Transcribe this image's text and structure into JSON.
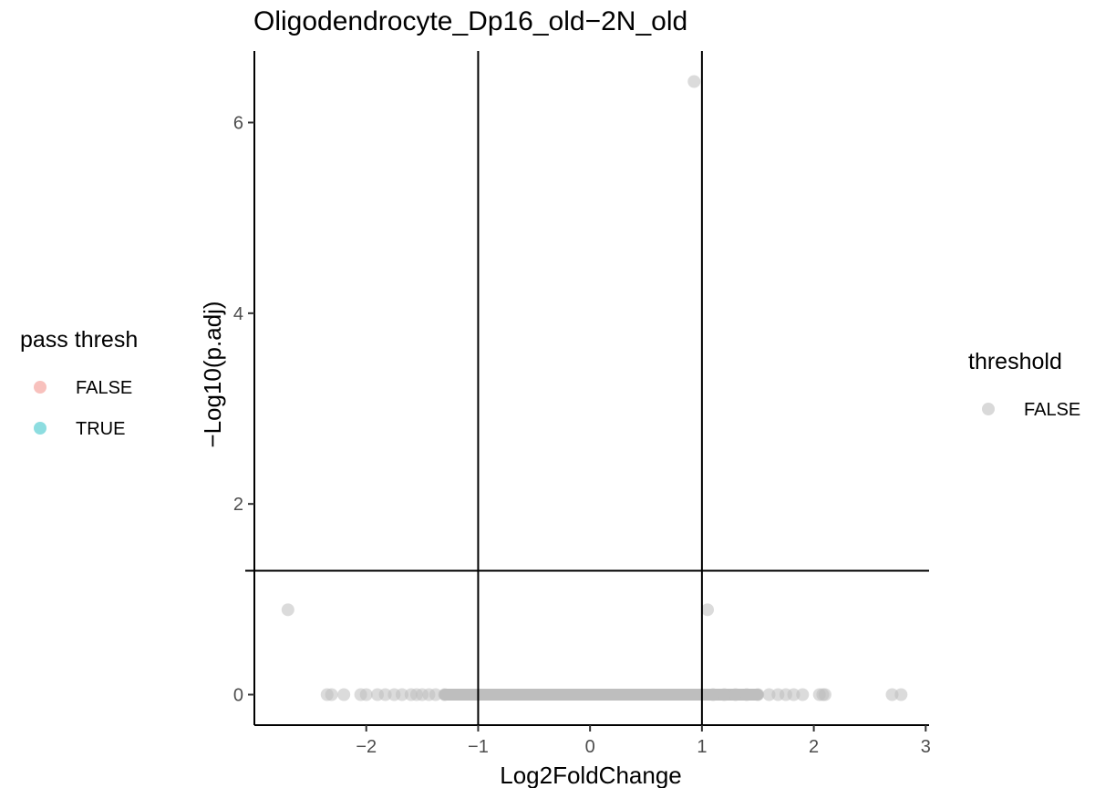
{
  "chart_data": {
    "type": "scatter",
    "title": "Oligodendrocyte_Dp16_old−2N_old",
    "xlabel": "Log2FoldChange",
    "ylabel": "−Log10(p.adj)",
    "xlim": [
      -3.0,
      3.03
    ],
    "ylim": [
      -0.32,
      6.75
    ],
    "x_ticks": [
      -2,
      -1,
      0,
      1,
      2,
      3
    ],
    "x_tick_labels": [
      "−2",
      "−1",
      "0",
      "1",
      "2",
      "3"
    ],
    "y_ticks": [
      0,
      2,
      4,
      6
    ],
    "y_tick_labels": [
      "0",
      "2",
      "4",
      "6"
    ],
    "reference_lines": {
      "vertical": [
        -1,
        1
      ],
      "horizontal": [
        1.3
      ]
    },
    "grid": false,
    "point_color": "#bebebe",
    "points": [
      {
        "x": 0.93,
        "y": 6.43
      },
      {
        "x": -2.7,
        "y": 0.89
      },
      {
        "x": 1.05,
        "y": 0.89
      },
      {
        "x": -2.35,
        "y": 0
      },
      {
        "x": -2.31,
        "y": 0
      },
      {
        "x": -2.2,
        "y": 0
      },
      {
        "x": -2.05,
        "y": 0
      },
      {
        "x": -2.0,
        "y": 0
      },
      {
        "x": -1.9,
        "y": 0
      },
      {
        "x": -1.83,
        "y": 0
      },
      {
        "x": -1.75,
        "y": 0
      },
      {
        "x": -1.68,
        "y": 0
      },
      {
        "x": -1.6,
        "y": 0
      },
      {
        "x": -1.55,
        "y": 0
      },
      {
        "x": -1.5,
        "y": 0
      },
      {
        "x": -1.44,
        "y": 0
      },
      {
        "x": -1.38,
        "y": 0
      },
      {
        "x": -1.3,
        "y": 0
      },
      {
        "x": 1.1,
        "y": 0
      },
      {
        "x": 1.2,
        "y": 0
      },
      {
        "x": 1.3,
        "y": 0
      },
      {
        "x": 1.4,
        "y": 0
      },
      {
        "x": 1.5,
        "y": 0
      },
      {
        "x": 1.6,
        "y": 0
      },
      {
        "x": 1.68,
        "y": 0
      },
      {
        "x": 1.75,
        "y": 0
      },
      {
        "x": 1.82,
        "y": 0
      },
      {
        "x": 1.9,
        "y": 0
      },
      {
        "x": 2.05,
        "y": 0
      },
      {
        "x": 2.08,
        "y": 0
      },
      {
        "x": 2.1,
        "y": 0
      },
      {
        "x": 2.7,
        "y": 0
      },
      {
        "x": 2.78,
        "y": 0
      }
    ],
    "dense_band": {
      "x_range": [
        -1.35,
        1.55
      ],
      "y": 0
    },
    "legends": [
      {
        "title": "pass thresh",
        "entries": [
          {
            "label": "FALSE",
            "color": "#f8c1bd"
          },
          {
            "label": "TRUE",
            "color": "#8ddde0"
          }
        ]
      },
      {
        "title": "threshold",
        "entries": [
          {
            "label": "FALSE",
            "color": "#d9d9d9"
          }
        ]
      }
    ]
  }
}
